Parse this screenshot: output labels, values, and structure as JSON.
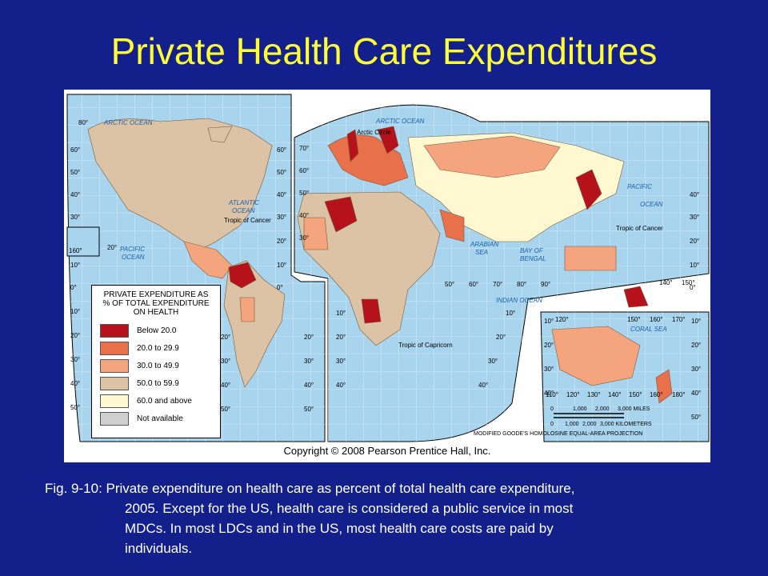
{
  "title": "Private Health Care Expenditures",
  "copyright": "Copyright © 2008 Pearson Prentice Hall, Inc.",
  "legend": {
    "title_lines": [
      "PRIVATE EXPENDITURE AS",
      "% OF TOTAL EXPENDITURE",
      "ON HEALTH"
    ],
    "items": [
      {
        "label": "Below 20.0",
        "color": "#b5121b"
      },
      {
        "label": "20.0 to 29.9",
        "color": "#e8704a"
      },
      {
        "label": "30.0 to 49.9",
        "color": "#f5a57e"
      },
      {
        "label": "50.0 to 59.9",
        "color": "#dcc3a6"
      },
      {
        "label": "60.0 and above",
        "color": "#fff8d0"
      },
      {
        "label": "Not available",
        "color": "#cfcfcf"
      }
    ]
  },
  "map_labels": {
    "arctic_ocean_left": "ARCTIC OCEAN",
    "arctic_ocean_right": "ARCTIC OCEAN",
    "arctic_circle": "Arctic Circle",
    "atlantic_ocean": [
      "ATLANTIC",
      "OCEAN"
    ],
    "pacific_ocean_left": [
      "PACIFIC",
      "OCEAN"
    ],
    "pacific_ocean_right": [
      "PACIFIC",
      "OCEAN"
    ],
    "indian_ocean": "INDIAN OCEAN",
    "arabian_sea": [
      "ARABIAN",
      "SEA"
    ],
    "bay_of_bengal": [
      "BAY OF",
      "BENGAL"
    ],
    "coral_sea": "CORAL SEA",
    "tropic_of_cancer_left": "Tropic of Cancer",
    "tropic_of_cancer_right": "Tropic of Cancer",
    "tropic_of_capricorn": "Tropic of Capricorn",
    "projection": "MODIFIED GOODE'S HOMOLOSINE EQUAL-AREA PROJECTION"
  },
  "scale_bar": {
    "miles_ticks": [
      "0",
      "1,000",
      "2,000",
      "3,000 MILES"
    ],
    "km_ticks": [
      "0",
      "1,000",
      "2,000",
      "3,000 KILOMETERS"
    ]
  },
  "latitude_labels": {
    "left_edge": [
      "60°",
      "50°",
      "40°",
      "30°",
      "160°",
      "10°",
      "0°",
      "10°",
      "20°",
      "30°",
      "40°",
      "50°"
    ],
    "americas_right": [
      "60°",
      "50°",
      "40°",
      "30°",
      "20°",
      "10°",
      "0°"
    ],
    "europe_left": [
      "70°",
      "60°",
      "50°",
      "40°",
      "30°"
    ],
    "africa_left": [
      "10°",
      "20°",
      "30°",
      "40°"
    ],
    "africa_right": [
      "10°",
      "20°",
      "30°",
      "40°"
    ],
    "asia_right": [
      "40°",
      "30°",
      "20°",
      "10°",
      "0°"
    ],
    "south_america_right": [
      "20°",
      "30°",
      "40°",
      "50°"
    ],
    "south_america_left": [
      "20°",
      "30°",
      "40°",
      "50°"
    ],
    "australia_left": [
      "10°",
      "20°",
      "30°",
      "40°"
    ],
    "australia_right": [
      "10°",
      "20°",
      "30°",
      "40°",
      "50°"
    ]
  },
  "longitude_labels": {
    "top_left": "80°",
    "indian_ocean_row": [
      "50°",
      "60°",
      "70°",
      "80°",
      "90°"
    ],
    "pacific_row": [
      "140°",
      "150°"
    ],
    "australia_top": [
      "120°",
      "150°",
      "160°",
      "170°"
    ],
    "australia_bottom": [
      "110°",
      "120°",
      "130°",
      "140°",
      "150°",
      "160°",
      "180°"
    ],
    "left_column": "20°"
  },
  "caption": {
    "line1": "Fig. 9-10: Private expenditure on health care as percent of total health care expenditure,",
    "line2": "2005.  Except for the US, health care is considered a public service in most",
    "line3": "MDCs.  In most LDCs and in the US, most health care costs are paid by",
    "line4": "individuals."
  }
}
